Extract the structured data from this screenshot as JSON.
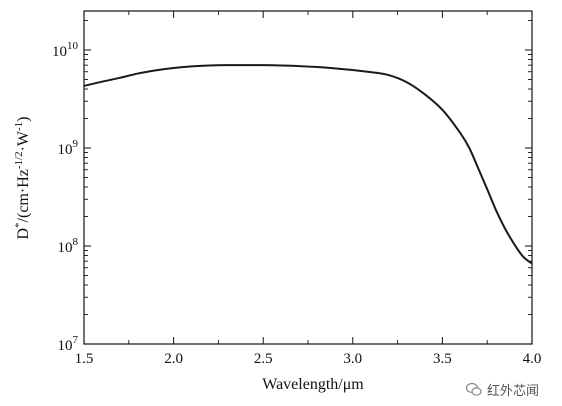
{
  "chart_data": {
    "type": "line",
    "xlabel": "Wavelength/μm",
    "ylabel": "D*/(cm·Hz-1/2·W-1)",
    "ylabel_parts": {
      "base": "D",
      "star": "*",
      "mid1": "/(cm·Hz",
      "exp1": "-1/2",
      "mid2": "·W",
      "exp2": "-1",
      "end": ")"
    },
    "xlim": [
      1.5,
      4.0
    ],
    "ylim": [
      10000000,
      25000000000
    ],
    "yscale": "log",
    "x_ticks": [
      "1.5",
      "2.0",
      "2.5",
      "3.0",
      "3.5",
      "4.0"
    ],
    "y_ticks": [
      {
        "base": "10",
        "exp": "7"
      },
      {
        "base": "10",
        "exp": "8"
      },
      {
        "base": "10",
        "exp": "9"
      },
      {
        "base": "10",
        "exp": "10"
      }
    ],
    "grid": false,
    "series": [
      {
        "color": "#1a1a1a",
        "x": [
          1.5,
          1.6,
          1.7,
          1.8,
          1.9,
          2.0,
          2.1,
          2.2,
          2.3,
          2.4,
          2.5,
          2.6,
          2.7,
          2.8,
          2.9,
          3.0,
          3.1,
          3.2,
          3.3,
          3.4,
          3.5,
          3.6,
          3.65,
          3.7,
          3.75,
          3.8,
          3.85,
          3.9,
          3.95,
          4.0
        ],
        "y": [
          4300000000,
          4750000000,
          5200000000,
          5750000000,
          6200000000,
          6550000000,
          6800000000,
          6950000000,
          7000000000,
          7000000000,
          7000000000,
          6950000000,
          6850000000,
          6700000000,
          6500000000,
          6250000000,
          5950000000,
          5550000000,
          4700000000,
          3550000000,
          2450000000,
          1420000000,
          1000000000,
          620000000,
          380000000,
          230000000,
          150000000,
          105000000,
          78000000,
          66000000
        ]
      }
    ]
  },
  "watermark": {
    "text": "红外芯闻",
    "icon": "wechat-icon"
  }
}
